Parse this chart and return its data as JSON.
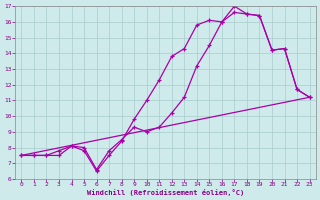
{
  "xlabel": "Windchill (Refroidissement éolien,°C)",
  "bg_color": "#ceeaea",
  "line_color": "#aa00aa",
  "grid_color": "#aacccc",
  "xlim": [
    -0.5,
    23.5
  ],
  "ylim": [
    6,
    17
  ],
  "xticks": [
    0,
    1,
    2,
    3,
    4,
    5,
    6,
    7,
    8,
    9,
    10,
    11,
    12,
    13,
    14,
    15,
    16,
    17,
    18,
    19,
    20,
    21,
    22,
    23
  ],
  "yticks": [
    6,
    7,
    8,
    9,
    10,
    11,
    12,
    13,
    14,
    15,
    16,
    17
  ],
  "line1_x": [
    0,
    1,
    2,
    3,
    4,
    5,
    6,
    7,
    8,
    9,
    10,
    11,
    12,
    13,
    14,
    15,
    16,
    17,
    18,
    19,
    20,
    21,
    22,
    23
  ],
  "line1_y": [
    7.5,
    7.5,
    7.5,
    7.5,
    8.1,
    7.8,
    6.5,
    7.5,
    8.4,
    9.8,
    11.0,
    12.3,
    13.8,
    14.3,
    15.8,
    16.1,
    16.0,
    17.0,
    16.5,
    16.4,
    14.2,
    14.3,
    11.7,
    11.2
  ],
  "line2_x": [
    0,
    1,
    2,
    3,
    4,
    5,
    6,
    7,
    8,
    9,
    10,
    11,
    12,
    13,
    14,
    15,
    16,
    17,
    18,
    19,
    20,
    21,
    22,
    23
  ],
  "line2_y": [
    7.5,
    7.5,
    7.5,
    7.8,
    8.1,
    8.0,
    6.6,
    7.8,
    8.5,
    9.3,
    9.0,
    9.3,
    10.2,
    11.2,
    13.2,
    14.5,
    16.0,
    16.6,
    16.5,
    16.4,
    14.2,
    14.3,
    11.7,
    11.2
  ],
  "line3_x": [
    0,
    23
  ],
  "line3_y": [
    7.5,
    11.2
  ]
}
